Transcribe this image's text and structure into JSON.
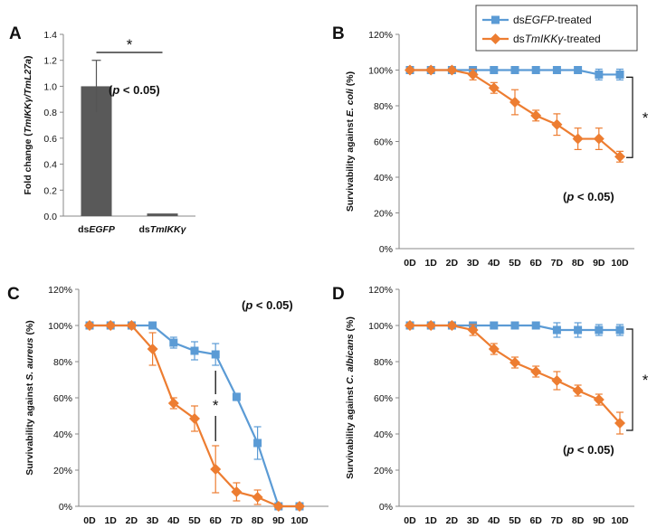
{
  "colors": {
    "egfp": "#5B9BD5",
    "tmikk": "#ED7D31",
    "bar": "#595959",
    "text": "#111111",
    "axis": "#888888"
  },
  "legend": {
    "entries": [
      {
        "prefix": "ds",
        "italic": "EGFP",
        "suffix": "-treated",
        "color": "#5B9BD5",
        "marker": "square"
      },
      {
        "prefix": "ds",
        "italic": "TmIKKγ",
        "suffix": "-treated",
        "color": "#ED7D31",
        "marker": "diamond"
      }
    ]
  },
  "chart_data": [
    {
      "panel": "A",
      "type": "bar",
      "ylabel": {
        "prefix": "Fold change (",
        "italic": "TmIKKγ/TmL27a",
        "suffix": ")"
      },
      "ylim": [
        0,
        1.4
      ],
      "yticks": [
        "0.0",
        "0.2",
        "0.4",
        "0.6",
        "0.8",
        "1.0",
        "1.2",
        "1.4"
      ],
      "categories": [
        {
          "prefix": "ds",
          "italic": "EGFP"
        },
        {
          "prefix": "ds",
          "italic": "TmIKKγ"
        }
      ],
      "values": [
        1.0,
        0.02
      ],
      "errors": [
        0.2,
        0.0
      ],
      "significance": {
        "star": "*",
        "text": "(p < 0.05)",
        "p_char": "p",
        "before": "(",
        "after": " < 0.05)"
      }
    },
    {
      "panel": "B",
      "type": "line",
      "ylabel": {
        "prefix": "Survivability against ",
        "italic": "E. coli",
        "suffix": " (%)"
      },
      "ylim": [
        0,
        120
      ],
      "yticks": [
        "0%",
        "20%",
        "40%",
        "60%",
        "80%",
        "100%",
        "120%"
      ],
      "x": [
        "0D",
        "1D",
        "2D",
        "3D",
        "4D",
        "5D",
        "6D",
        "7D",
        "8D",
        "9D",
        "10D"
      ],
      "series": [
        {
          "name": "dsEGFP-treated",
          "values": [
            100,
            100,
            100,
            100,
            100,
            100,
            100,
            100,
            100,
            97.5,
            97.5
          ],
          "errors": [
            0,
            0,
            0,
            0,
            0,
            0,
            0,
            0,
            0,
            3,
            3
          ]
        },
        {
          "name": "dsTmIKKγ-treated",
          "values": [
            100,
            100,
            100,
            97.5,
            90,
            82,
            74.5,
            69.5,
            61.5,
            61.5,
            51.5
          ],
          "errors": [
            0,
            0,
            0,
            3,
            3,
            7,
            3,
            6,
            6,
            6,
            3
          ]
        }
      ],
      "significance": {
        "star": "*",
        "text": "(p < 0.05)",
        "p_char": "p",
        "before": "(",
        "after": " < 0.05)"
      }
    },
    {
      "panel": "C",
      "type": "line",
      "ylabel": {
        "prefix": "Survivability against ",
        "italic": "S. aureus",
        "suffix": " (%)"
      },
      "ylim": [
        0,
        120
      ],
      "yticks": [
        "0%",
        "20%",
        "40%",
        "60%",
        "80%",
        "100%",
        "120%"
      ],
      "x": [
        "0D",
        "1D",
        "2D",
        "3D",
        "4D",
        "5D",
        "6D",
        "7D",
        "8D",
        "9D",
        "10D"
      ],
      "series": [
        {
          "name": "dsEGFP-treated",
          "values": [
            100,
            100,
            100,
            100,
            90.5,
            86,
            84,
            60.5,
            35,
            0,
            0
          ],
          "errors": [
            0,
            0,
            0,
            0,
            3,
            5,
            6,
            2,
            9,
            0,
            0
          ]
        },
        {
          "name": "dsTmIKKγ-treated",
          "values": [
            100,
            100,
            100,
            87,
            57,
            48.5,
            20.5,
            8,
            5,
            0,
            0
          ],
          "errors": [
            0,
            0,
            0,
            9,
            3,
            7,
            13,
            5,
            4,
            0,
            0
          ]
        }
      ],
      "significance": {
        "star": "*",
        "text": "(p < 0.05)",
        "p_char": "p",
        "before": "(",
        "after": " < 0.05)"
      }
    },
    {
      "panel": "D",
      "type": "line",
      "ylabel": {
        "prefix": "Survivability against ",
        "italic": "C. albicans",
        "suffix": " (%)"
      },
      "ylim": [
        0,
        120
      ],
      "yticks": [
        "0%",
        "20%",
        "40%",
        "60%",
        "80%",
        "100%",
        "120%"
      ],
      "x": [
        "0D",
        "1D",
        "2D",
        "3D",
        "4D",
        "5D",
        "6D",
        "7D",
        "8D",
        "9D",
        "10D"
      ],
      "series": [
        {
          "name": "dsEGFP-treated",
          "values": [
            100,
            100,
            100,
            100,
            100,
            100,
            100,
            97.5,
            97.5,
            97.5,
            97.5
          ],
          "errors": [
            0,
            0,
            0,
            0,
            0,
            0,
            0,
            4,
            4,
            3,
            3
          ]
        },
        {
          "name": "dsTmIKKγ-treated",
          "values": [
            100,
            100,
            100,
            97.5,
            87,
            79.5,
            74.5,
            69.5,
            64,
            59,
            46
          ],
          "errors": [
            0,
            0,
            0,
            3,
            3,
            3,
            3,
            5,
            3,
            3,
            6
          ]
        }
      ],
      "significance": {
        "star": "*",
        "text": "(p < 0.05)",
        "p_char": "p",
        "before": "(",
        "after": " < 0.05)"
      }
    }
  ]
}
